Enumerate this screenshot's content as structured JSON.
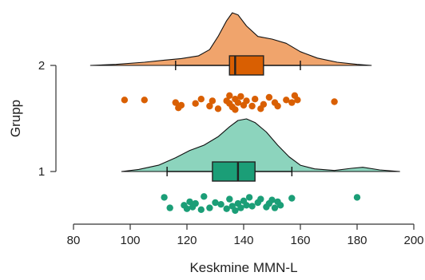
{
  "chart_data": {
    "type": "raincloud",
    "orientation": "horizontal",
    "xlabel": "Keskmine MMN-L",
    "ylabel": "Grupp",
    "xlim": [
      80,
      200
    ],
    "xticks": [
      "80",
      "100",
      "120",
      "140",
      "160",
      "180",
      "200"
    ],
    "yticks": [
      "1",
      "2"
    ],
    "grid": false,
    "legend": "none",
    "groups": [
      {
        "label": "2",
        "fill_color": "#f0a46c",
        "box_color": "#d95f02",
        "point_color": "#d95f02",
        "density": {
          "x": [
            86,
            95,
            105,
            112,
            118,
            124,
            128,
            131,
            134,
            136,
            138,
            141,
            145,
            150,
            155,
            160,
            166,
            173,
            180,
            185
          ],
          "y": [
            0.0,
            0.02,
            0.06,
            0.1,
            0.13,
            0.18,
            0.3,
            0.55,
            0.85,
            1.0,
            0.96,
            0.75,
            0.55,
            0.5,
            0.42,
            0.26,
            0.14,
            0.06,
            0.02,
            0.0
          ]
        },
        "box": {
          "whisker_low": 116,
          "q1": 135,
          "median": 137,
          "q3": 147,
          "whisker_high": 160
        },
        "points": [
          [
            98,
            0.15
          ],
          [
            105,
            0.15
          ],
          [
            116,
            0.3
          ],
          [
            117,
            0.6
          ],
          [
            118,
            0.45
          ],
          [
            123,
            0.35
          ],
          [
            125,
            0.1
          ],
          [
            128,
            0.5
          ],
          [
            129,
            0.2
          ],
          [
            131,
            0.65
          ],
          [
            134,
            0.2
          ],
          [
            135,
            -0.1
          ],
          [
            135,
            0.35
          ],
          [
            136,
            0.55
          ],
          [
            137,
            0.1
          ],
          [
            137,
            0.7
          ],
          [
            138,
            0.3
          ],
          [
            139,
            -0.05
          ],
          [
            140,
            0.45
          ],
          [
            141,
            0.2
          ],
          [
            143,
            0.5
          ],
          [
            144,
            0.1
          ],
          [
            146,
            0.65
          ],
          [
            147,
            0.4
          ],
          [
            149,
            0.0
          ],
          [
            151,
            0.3
          ],
          [
            152,
            0.5
          ],
          [
            155,
            0.15
          ],
          [
            157,
            0.3
          ],
          [
            158,
            -0.1
          ],
          [
            159,
            0.15
          ],
          [
            172,
            0.25
          ]
        ]
      },
      {
        "label": "1",
        "fill_color": "#8cd4bd",
        "box_color": "#1b9e77",
        "point_color": "#1b9e77",
        "density": {
          "x": [
            97,
            103,
            110,
            116,
            121,
            126,
            131,
            135,
            138,
            141,
            144,
            148,
            152,
            156,
            160,
            165,
            172,
            178,
            182,
            188,
            195
          ],
          "y": [
            0.0,
            0.04,
            0.12,
            0.26,
            0.4,
            0.5,
            0.66,
            0.85,
            0.97,
            1.0,
            0.93,
            0.75,
            0.5,
            0.28,
            0.12,
            0.05,
            0.02,
            0.06,
            0.08,
            0.03,
            0.0
          ]
        },
        "box": {
          "whisker_low": 113,
          "q1": 129,
          "median": 138,
          "q3": 144,
          "whisker_high": 157
        },
        "points": [
          [
            112,
            -0.3
          ],
          [
            114,
            0.3
          ],
          [
            119,
            0.15
          ],
          [
            120,
            0.35
          ],
          [
            121,
            -0.05
          ],
          [
            122,
            0.25
          ],
          [
            123,
            0.05
          ],
          [
            125,
            0.4
          ],
          [
            126,
            -0.35
          ],
          [
            128,
            0.3
          ],
          [
            130,
            0.0
          ],
          [
            132,
            0.1
          ],
          [
            134,
            0.35
          ],
          [
            135,
            -0.2
          ],
          [
            136,
            0.2
          ],
          [
            137,
            0.45
          ],
          [
            138,
            0.05
          ],
          [
            139,
            0.3
          ],
          [
            140,
            -0.1
          ],
          [
            141,
            0.15
          ],
          [
            142,
            -0.3
          ],
          [
            143,
            0.2
          ],
          [
            145,
            0.0
          ],
          [
            146,
            -0.2
          ],
          [
            148,
            0.25
          ],
          [
            149,
            0.05
          ],
          [
            150,
            -0.15
          ],
          [
            151,
            0.3
          ],
          [
            152,
            -0.05
          ],
          [
            153,
            0.15
          ],
          [
            157,
            -0.25
          ],
          [
            180,
            -0.3
          ]
        ]
      }
    ]
  }
}
